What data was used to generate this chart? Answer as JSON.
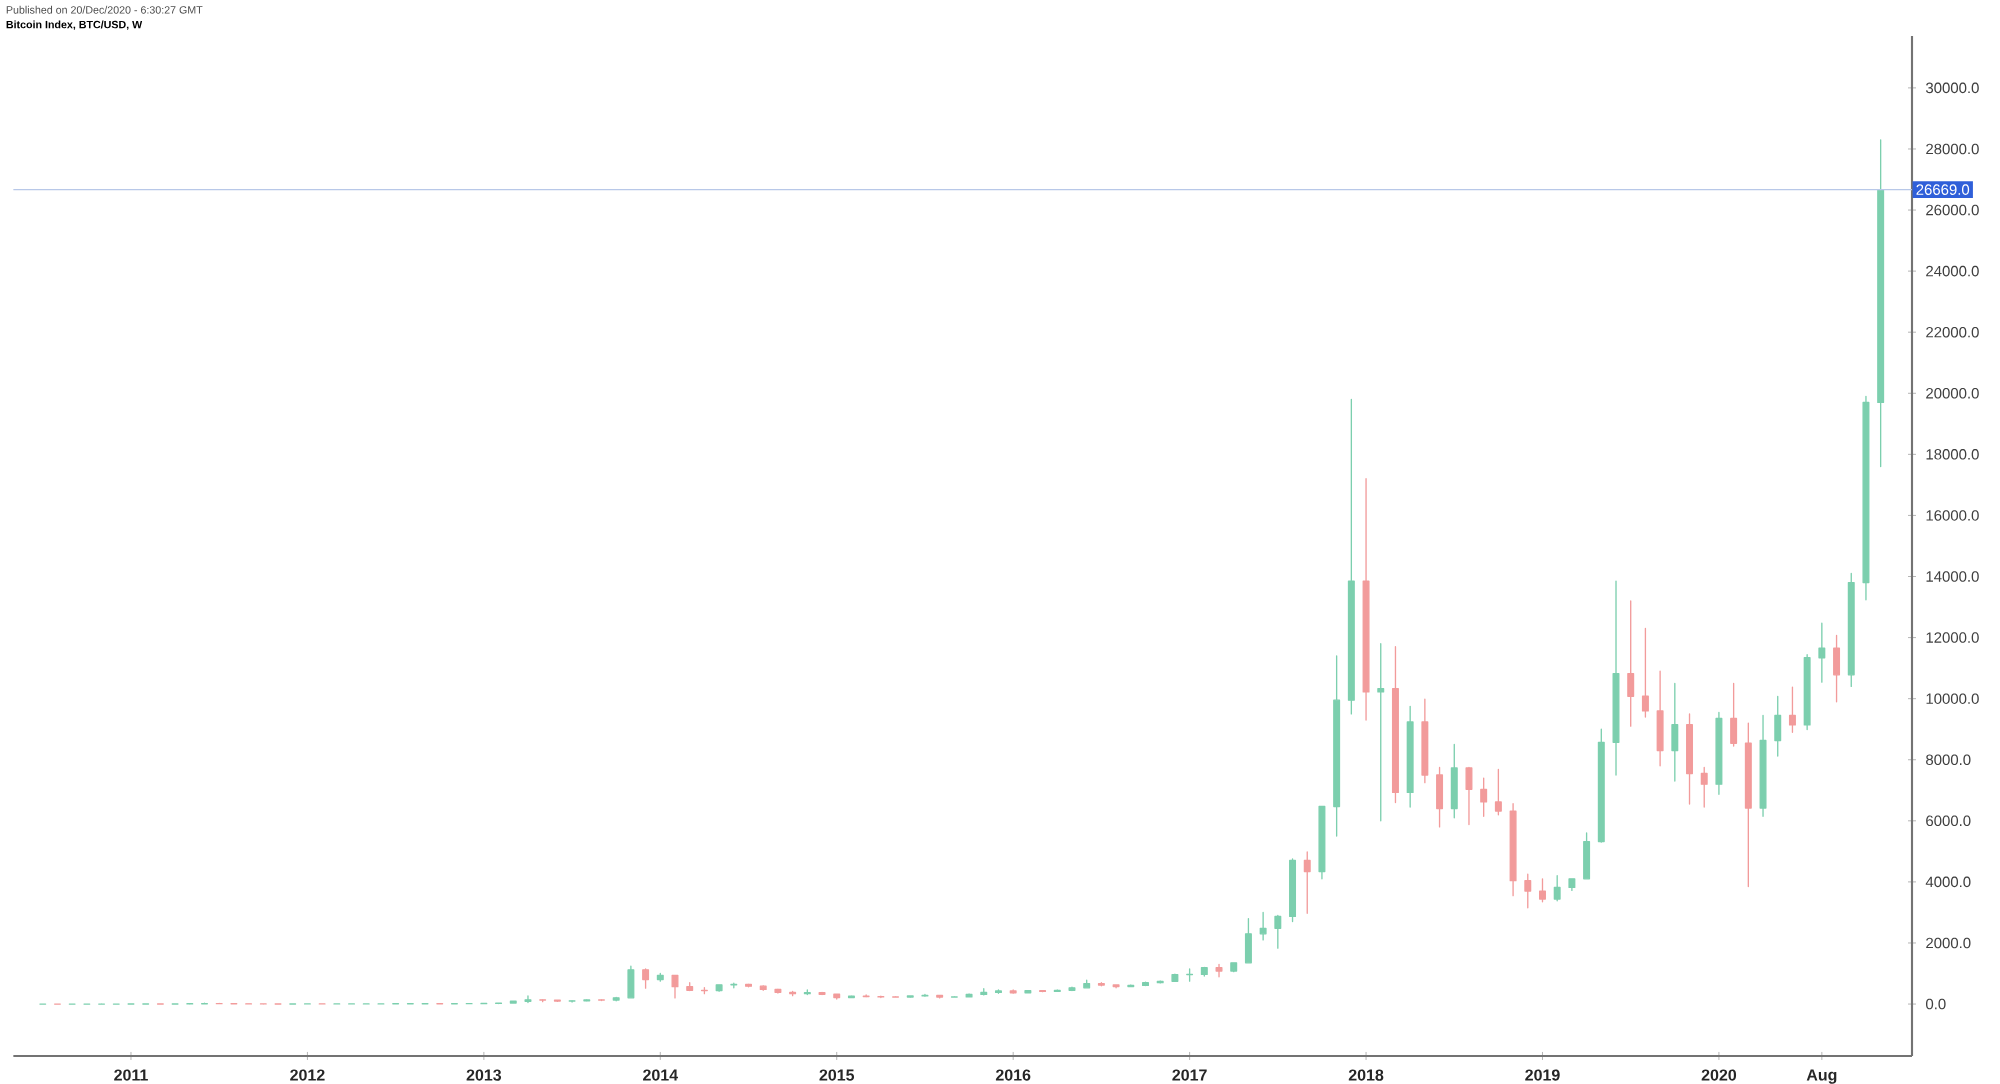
{
  "chart_data": {
    "type": "candlestick",
    "title": "Bitcoin Index, BTC/USD, W",
    "annotations": [
      "Published on 20/Dec/2020 - 6:30:27 GMT"
    ],
    "x": [
      "2010-07",
      "2010-08",
      "2010-09",
      "2010-10",
      "2010-11",
      "2010-12",
      "2011-01",
      "2011-02",
      "2011-03",
      "2011-04",
      "2011-05",
      "2011-06",
      "2011-07",
      "2011-08",
      "2011-09",
      "2011-10",
      "2011-11",
      "2011-12",
      "2012-01",
      "2012-02",
      "2012-03",
      "2012-04",
      "2012-05",
      "2012-06",
      "2012-07",
      "2012-08",
      "2012-09",
      "2012-10",
      "2012-11",
      "2012-12",
      "2013-01",
      "2013-02",
      "2013-03",
      "2013-04",
      "2013-05",
      "2013-06",
      "2013-07",
      "2013-08",
      "2013-09",
      "2013-10",
      "2013-11",
      "2013-12",
      "2014-01",
      "2014-02",
      "2014-03",
      "2014-04",
      "2014-05",
      "2014-06",
      "2014-07",
      "2014-08",
      "2014-09",
      "2014-10",
      "2014-11",
      "2014-12",
      "2015-01",
      "2015-02",
      "2015-03",
      "2015-04",
      "2015-05",
      "2015-06",
      "2015-07",
      "2015-08",
      "2015-09",
      "2015-10",
      "2015-11",
      "2015-12",
      "2016-01",
      "2016-02",
      "2016-03",
      "2016-04",
      "2016-05",
      "2016-06",
      "2016-07",
      "2016-08",
      "2016-09",
      "2016-10",
      "2016-11",
      "2016-12",
      "2017-01",
      "2017-02",
      "2017-03",
      "2017-04",
      "2017-05",
      "2017-06",
      "2017-07",
      "2017-08",
      "2017-09",
      "2017-10",
      "2017-11",
      "2017-12",
      "2018-01",
      "2018-02",
      "2018-03",
      "2018-04",
      "2018-05",
      "2018-06",
      "2018-07",
      "2018-08",
      "2018-09",
      "2018-10",
      "2018-11",
      "2018-12",
      "2019-01",
      "2019-02",
      "2019-03",
      "2019-04",
      "2019-05",
      "2019-06",
      "2019-07",
      "2019-08",
      "2019-09",
      "2019-10",
      "2019-11",
      "2019-12",
      "2020-01",
      "2020-02",
      "2020-03",
      "2020-04",
      "2020-05",
      "2020-06",
      "2020-07",
      "2020-08",
      "2020-09",
      "2020-10",
      "2020-11",
      "2020-12"
    ],
    "ohlc": [
      [
        0.05,
        0.1,
        0.05,
        0.07
      ],
      [
        0.07,
        0.07,
        0.06,
        0.06
      ],
      [
        0.06,
        0.07,
        0.06,
        0.06
      ],
      [
        0.06,
        0.2,
        0.06,
        0.19
      ],
      [
        0.19,
        0.5,
        0.19,
        0.21
      ],
      [
        0.21,
        0.3,
        0.2,
        0.3
      ],
      [
        0.3,
        0.5,
        0.3,
        0.5
      ],
      [
        0.5,
        1,
        0.5,
        0.9
      ],
      [
        0.9,
        0.95,
        0.7,
        0.8
      ],
      [
        0.8,
        3.5,
        0.6,
        3.5
      ],
      [
        3.5,
        9,
        3,
        8.7
      ],
      [
        8.7,
        31,
        7,
        16
      ],
      [
        16,
        17,
        12,
        13
      ],
      [
        13,
        13,
        7,
        8
      ],
      [
        8,
        8,
        4,
        5
      ],
      [
        5,
        5,
        2,
        3.2
      ],
      [
        3.2,
        3.5,
        2,
        3
      ],
      [
        3,
        4.8,
        2.8,
        4.7
      ],
      [
        4.7,
        7,
        4.7,
        5.5
      ],
      [
        5.5,
        6,
        4.5,
        4.9
      ],
      [
        4.9,
        5.3,
        4.7,
        4.9
      ],
      [
        4.9,
        5.2,
        4.8,
        5
      ],
      [
        5,
        5.2,
        4.9,
        5.2
      ],
      [
        5.2,
        6.7,
        5.2,
        6.7
      ],
      [
        6.7,
        9.5,
        6.5,
        9.3
      ],
      [
        9.3,
        16,
        7,
        10
      ],
      [
        10,
        12.5,
        10,
        12.4
      ],
      [
        12.4,
        12.8,
        10,
        11
      ],
      [
        11,
        12.6,
        10,
        12.6
      ],
      [
        12.6,
        13.8,
        12.5,
        13.5
      ],
      [
        13.5,
        20.5,
        13.5,
        20.4
      ],
      [
        20.4,
        33,
        19,
        33
      ],
      [
        33,
        95,
        33,
        93
      ],
      [
        93,
        266,
        50,
        139
      ],
      [
        139,
        140,
        79,
        129
      ],
      [
        129,
        129,
        85,
        97
      ],
      [
        97,
        110,
        65,
        106
      ],
      [
        106,
        140,
        100,
        135
      ],
      [
        135,
        145,
        115,
        133
      ],
      [
        133,
        215,
        105,
        203
      ],
      [
        203,
        1240,
        200,
        1120
      ],
      [
        1120,
        1150,
        520,
        805
      ],
      [
        805,
        1000,
        750,
        940
      ],
      [
        940,
        940,
        200,
        570
      ],
      [
        570,
        700,
        440,
        450
      ],
      [
        450,
        540,
        340,
        445
      ],
      [
        445,
        630,
        420,
        630
      ],
      [
        630,
        680,
        530,
        640
      ],
      [
        640,
        650,
        565,
        585
      ],
      [
        585,
        600,
        450,
        480
      ],
      [
        480,
        490,
        360,
        385
      ],
      [
        385,
        415,
        275,
        340
      ],
      [
        340,
        460,
        310,
        375
      ],
      [
        375,
        385,
        310,
        320
      ],
      [
        320,
        320,
        165,
        215
      ],
      [
        215,
        270,
        210,
        255
      ],
      [
        255,
        300,
        240,
        245
      ],
      [
        245,
        260,
        215,
        235
      ],
      [
        235,
        245,
        225,
        230
      ],
      [
        230,
        265,
        220,
        265
      ],
      [
        265,
        315,
        255,
        285
      ],
      [
        285,
        285,
        200,
        230
      ],
      [
        230,
        245,
        225,
        235
      ],
      [
        235,
        335,
        235,
        315
      ],
      [
        315,
        500,
        300,
        380
      ],
      [
        380,
        465,
        350,
        430
      ],
      [
        430,
        460,
        350,
        370
      ],
      [
        370,
        440,
        365,
        435
      ],
      [
        435,
        440,
        405,
        415
      ],
      [
        415,
        465,
        415,
        450
      ],
      [
        450,
        550,
        440,
        530
      ],
      [
        530,
        780,
        530,
        670
      ],
      [
        670,
        700,
        600,
        625
      ],
      [
        625,
        625,
        530,
        575
      ],
      [
        575,
        625,
        570,
        610
      ],
      [
        610,
        720,
        605,
        700
      ],
      [
        700,
        755,
        690,
        745
      ],
      [
        745,
        975,
        740,
        965
      ],
      [
        965,
        1150,
        750,
        970
      ],
      [
        970,
        1200,
        915,
        1190
      ],
      [
        1190,
        1300,
        890,
        1080
      ],
      [
        1080,
        1350,
        1060,
        1350
      ],
      [
        1350,
        2800,
        1350,
        2300
      ],
      [
        2300,
        3000,
        2100,
        2480
      ],
      [
        2480,
        2900,
        1830,
        2870
      ],
      [
        2870,
        4750,
        2700,
        4700
      ],
      [
        4700,
        4980,
        2970,
        4340
      ],
      [
        4340,
        6470,
        4100,
        6470
      ],
      [
        6470,
        11400,
        5500,
        9950
      ],
      [
        9950,
        19800,
        9500,
        13850
      ],
      [
        13850,
        17200,
        9300,
        10220
      ],
      [
        10220,
        11800,
        6000,
        10330
      ],
      [
        10330,
        11700,
        6600,
        6930
      ],
      [
        6930,
        9750,
        6450,
        9240
      ],
      [
        9240,
        9980,
        7250,
        7500
      ],
      [
        7500,
        7750,
        5800,
        6400
      ],
      [
        6400,
        8500,
        6100,
        7730
      ],
      [
        7730,
        7750,
        5880,
        7030
      ],
      [
        7030,
        7400,
        6150,
        6620
      ],
      [
        6620,
        7680,
        6200,
        6320
      ],
      [
        6320,
        6560,
        3550,
        4040
      ],
      [
        4040,
        4250,
        3150,
        3700
      ],
      [
        3700,
        4100,
        3350,
        3440
      ],
      [
        3440,
        4200,
        3380,
        3820
      ],
      [
        3820,
        4100,
        3720,
        4100
      ],
      [
        4100,
        5600,
        4100,
        5320
      ],
      [
        5320,
        9000,
        5300,
        8570
      ],
      [
        8570,
        13850,
        7500,
        10820
      ],
      [
        10820,
        13200,
        9100,
        10080
      ],
      [
        10080,
        12300,
        9400,
        9600
      ],
      [
        9600,
        10900,
        7800,
        8300
      ],
      [
        8300,
        10500,
        7300,
        9150
      ],
      [
        9150,
        9500,
        6550,
        7550
      ],
      [
        7550,
        7750,
        6450,
        7200
      ],
      [
        7200,
        9550,
        6870,
        9350
      ],
      [
        9350,
        10500,
        8450,
        8540
      ],
      [
        8540,
        9200,
        3850,
        6420
      ],
      [
        6420,
        9450,
        6150,
        8630
      ],
      [
        8630,
        10070,
        8120,
        9450
      ],
      [
        9450,
        10380,
        8900,
        9140
      ],
      [
        9140,
        11440,
        8990,
        11340
      ],
      [
        11340,
        12470,
        10540,
        11650
      ],
      [
        11650,
        12070,
        9900,
        10780
      ],
      [
        10780,
        14100,
        10400,
        13800
      ],
      [
        13800,
        19900,
        13240,
        19700
      ],
      [
        19700,
        28300,
        17600,
        26669
      ]
    ],
    "colors": [
      "#7ccfae",
      "#f29b9b",
      "#7ccfae",
      "#7ccfae",
      "#7ccfae",
      "#7ccfae",
      "#7ccfae",
      "#7ccfae",
      "#f29b9b",
      "#7ccfae",
      "#7ccfae",
      "#7ccfae",
      "#f29b9b",
      "#f29b9b",
      "#f29b9b",
      "#f29b9b",
      "#f29b9b",
      "#7ccfae",
      "#7ccfae",
      "#f29b9b",
      "#7ccfae",
      "#7ccfae",
      "#7ccfae",
      "#7ccfae",
      "#7ccfae",
      "#7ccfae",
      "#7ccfae",
      "#f29b9b",
      "#7ccfae",
      "#7ccfae",
      "#7ccfae",
      "#7ccfae",
      "#7ccfae",
      "#7ccfae",
      "#f29b9b",
      "#f29b9b",
      "#7ccfae",
      "#7ccfae",
      "#f29b9b",
      "#7ccfae",
      "#7ccfae",
      "#f29b9b",
      "#7ccfae",
      "#f29b9b",
      "#f29b9b",
      "#f29b9b",
      "#7ccfae",
      "#7ccfae",
      "#f29b9b",
      "#f29b9b",
      "#f29b9b",
      "#f29b9b",
      "#7ccfae",
      "#f29b9b",
      "#f29b9b",
      "#7ccfae",
      "#f29b9b",
      "#f29b9b",
      "#f29b9b",
      "#7ccfae",
      "#7ccfae",
      "#f29b9b",
      "#7ccfae",
      "#7ccfae",
      "#7ccfae",
      "#7ccfae",
      "#f29b9b",
      "#7ccfae",
      "#f29b9b",
      "#7ccfae",
      "#7ccfae",
      "#7ccfae",
      "#f29b9b",
      "#f29b9b",
      "#7ccfae",
      "#7ccfae",
      "#7ccfae",
      "#7ccfae",
      "#7ccfae",
      "#7ccfae",
      "#f29b9b",
      "#7ccfae",
      "#7ccfae",
      "#7ccfae",
      "#7ccfae",
      "#7ccfae",
      "#f29b9b",
      "#7ccfae",
      "#7ccfae",
      "#7ccfae",
      "#f29b9b",
      "#7ccfae",
      "#f29b9b",
      "#7ccfae",
      "#f29b9b",
      "#f29b9b",
      "#7ccfae",
      "#f29b9b",
      "#f29b9b",
      "#f29b9b",
      "#f29b9b",
      "#f29b9b",
      "#f29b9b",
      "#7ccfae",
      "#7ccfae",
      "#7ccfae",
      "#7ccfae",
      "#7ccfae",
      "#f29b9b",
      "#f29b9b",
      "#f29b9b",
      "#7ccfae",
      "#f29b9b",
      "#f29b9b",
      "#7ccfae",
      "#f29b9b",
      "#f29b9b",
      "#7ccfae",
      "#7ccfae",
      "#f29b9b",
      "#7ccfae",
      "#7ccfae",
      "#f29b9b",
      "#7ccfae",
      "#7ccfae",
      "#7ccfae"
    ],
    "xlim": [
      "2010-05-01",
      "2021-02-05"
    ],
    "xticks": [
      {
        "value": "2011-01-01",
        "label": "2011"
      },
      {
        "value": "2012-01-01",
        "label": "2012"
      },
      {
        "value": "2013-01-01",
        "label": "2013"
      },
      {
        "value": "2014-01-01",
        "label": "2014"
      },
      {
        "value": "2015-01-01",
        "label": "2015"
      },
      {
        "value": "2016-01-01",
        "label": "2016"
      },
      {
        "value": "2017-01-01",
        "label": "2017"
      },
      {
        "value": "2018-01-01",
        "label": "2018"
      },
      {
        "value": "2019-01-01",
        "label": "2019"
      },
      {
        "value": "2020-01-01",
        "label": "2020"
      },
      {
        "value": "2020-08-01",
        "label": "Aug"
      }
    ],
    "ylim": [
      -1700,
      31700
    ],
    "yticks": [
      {
        "value": 0,
        "label": "0.0"
      },
      {
        "value": 2000,
        "label": "2000.0"
      },
      {
        "value": 4000,
        "label": "4000.0"
      },
      {
        "value": 6000,
        "label": "6000.0"
      },
      {
        "value": 8000,
        "label": "8000.0"
      },
      {
        "value": 10000,
        "label": "10000.0"
      },
      {
        "value": 12000,
        "label": "12000.0"
      },
      {
        "value": 14000,
        "label": "14000.0"
      },
      {
        "value": 16000,
        "label": "16000.0"
      },
      {
        "value": 18000,
        "label": "18000.0"
      },
      {
        "value": 20000,
        "label": "20000.0"
      },
      {
        "value": 22000,
        "label": "22000.0"
      },
      {
        "value": 24000,
        "label": "24000.0"
      },
      {
        "value": 26000,
        "label": "26000.0"
      },
      {
        "value": 28000,
        "label": "28000.0"
      },
      {
        "value": 30000,
        "label": "30000.0"
      }
    ],
    "ref_lines": [
      {
        "axis": "y",
        "value": 26669,
        "label": "26669.0",
        "color": "#b8c8e8"
      }
    ],
    "grid": false
  }
}
